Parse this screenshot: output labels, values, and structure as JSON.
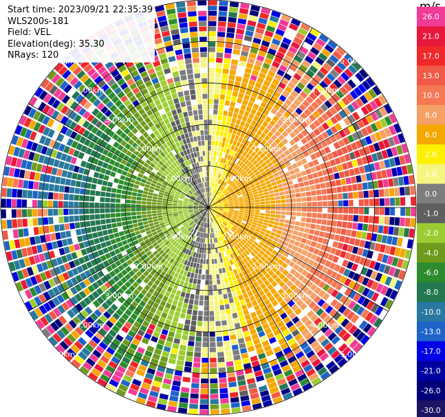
{
  "info": {
    "start_time": "Start time: 2023/09/21 22:35:39",
    "instrument": "WLS200s-181",
    "field": "Field: VEL",
    "elevation": "Elevation(deg): 35.30",
    "nrays": "NRays: 120"
  },
  "colorbar": {
    "unit": "m/s",
    "ticks": [
      "26.0",
      "21.0",
      "17.0",
      "13.0",
      "10.0",
      "8.0",
      "6.0",
      "2.0",
      "1.0",
      "0.0",
      "-1.0",
      "-2.0",
      "-4.0",
      "-6.0",
      "-8.0",
      "-10.0",
      "-13.0",
      "-17.0",
      "-21.0",
      "-26.0",
      "-30.0"
    ],
    "colors": [
      "#f03c96",
      "#e8173c",
      "#f02828",
      "#f05a46",
      "#f57855",
      "#f5a064",
      "#f5a800",
      "#fff000",
      "#f5f582",
      "#7d7d7d",
      "#5f5f5f",
      "#9bcd32",
      "#6e9b1e",
      "#2d8c2d",
      "#237850",
      "#2878a0",
      "#1e64c8",
      "#0000e6",
      "#0000a0",
      "#000078",
      "#1e1464"
    ]
  },
  "chart_data": {
    "type": "heatmap",
    "projection": "polar PPI",
    "field": "VEL",
    "units": "m/s",
    "nrays": 120,
    "elevation_deg": 35.3,
    "range_rings_km": [
      1.0,
      2.0,
      3.0,
      4.0,
      5.0
    ],
    "range_ring_labels": [
      "1.00km",
      "2.00km",
      "3.00km",
      "4.00km",
      "5.00km"
    ],
    "max_range_km": 5.0,
    "color_scale": [
      -30.0,
      26.0
    ],
    "pattern": "Outbound positive radial velocities (yellow to orange to red) toward the northeast and east; inbound negative velocities (light green to dark green to blue) toward the west and southwest; near-zero gray band from north-northwest through south; noisy speckle of all colors in the outer ranges."
  }
}
